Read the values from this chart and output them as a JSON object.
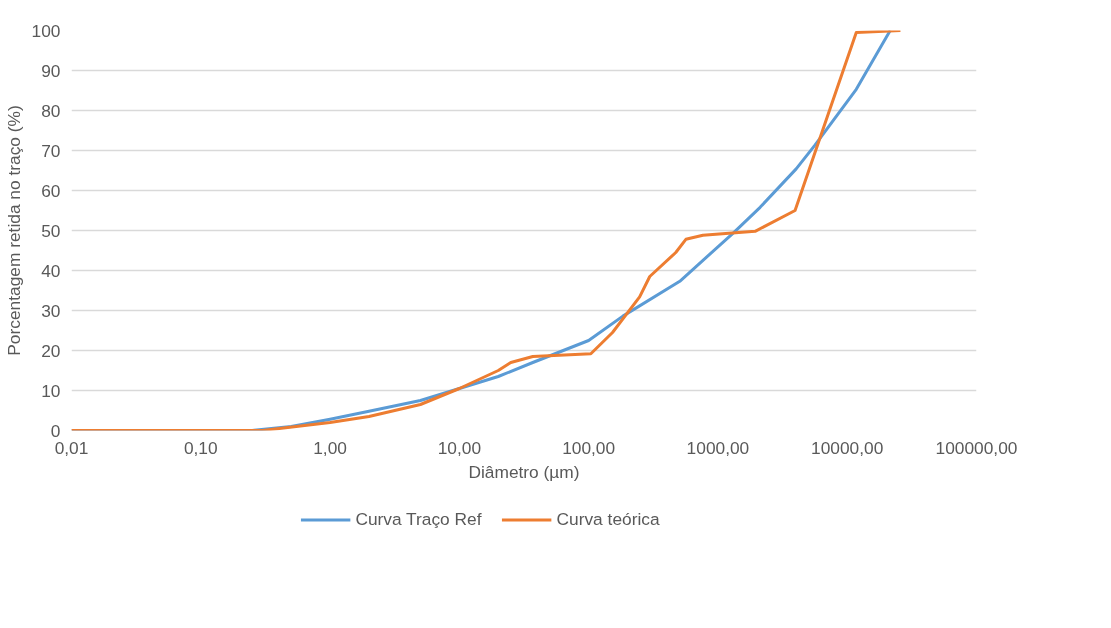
{
  "chart_data": {
    "type": "line",
    "xlabel": "Diâmetro (µm)",
    "ylabel": "Porcentagem retida no traço (%)",
    "log": "x",
    "xlim": [
      0.01,
      100000
    ],
    "xticks": [
      {
        "value": 0.01,
        "label": "0,01"
      },
      {
        "value": 0.1,
        "label": "0,10"
      },
      {
        "value": 1,
        "label": "1,00"
      },
      {
        "value": 10,
        "label": "10,00"
      },
      {
        "value": 100,
        "label": "100,00"
      },
      {
        "value": 1000,
        "label": "1000,00"
      },
      {
        "value": 10000,
        "label": "10000,00"
      },
      {
        "value": 100000,
        "label": "100000,00"
      }
    ],
    "ylim": [
      0,
      100
    ],
    "yticks": [
      0,
      10,
      20,
      30,
      40,
      50,
      60,
      70,
      80,
      90,
      100
    ],
    "grid": "y",
    "legend": "bottom",
    "marker": "none",
    "line_style": "solid",
    "series": [
      {
        "name": "Curva Traço Ref",
        "color": "#5b9bd5",
        "x": [
          0.01,
          0.25,
          0.5,
          1,
          2,
          5,
          10,
          20,
          37,
          100,
          184,
          507,
          1306,
          2120,
          4030,
          5650,
          11750,
          21500
        ],
        "values": [
          0,
          0,
          1,
          2.8,
          4.8,
          7.5,
          10.5,
          13.5,
          17,
          22.5,
          28.6,
          37.3,
          49.3,
          55.8,
          65.4,
          71.4,
          85.3,
          100
        ]
      },
      {
        "name": "Curva teórica",
        "color": "#ed7d31",
        "x": [
          0.01,
          0.3,
          1,
          2,
          5,
          10,
          20,
          25,
          37,
          104,
          153,
          248,
          297,
          472,
          565,
          765,
          1940,
          3950,
          11750,
          25800
        ],
        "values": [
          0,
          0,
          2,
          3.5,
          6.5,
          10.5,
          15,
          17,
          18.5,
          19.2,
          24.5,
          33.4,
          38.5,
          44.5,
          47.8,
          48.8,
          49.8,
          55,
          99.5,
          100
        ]
      }
    ]
  }
}
